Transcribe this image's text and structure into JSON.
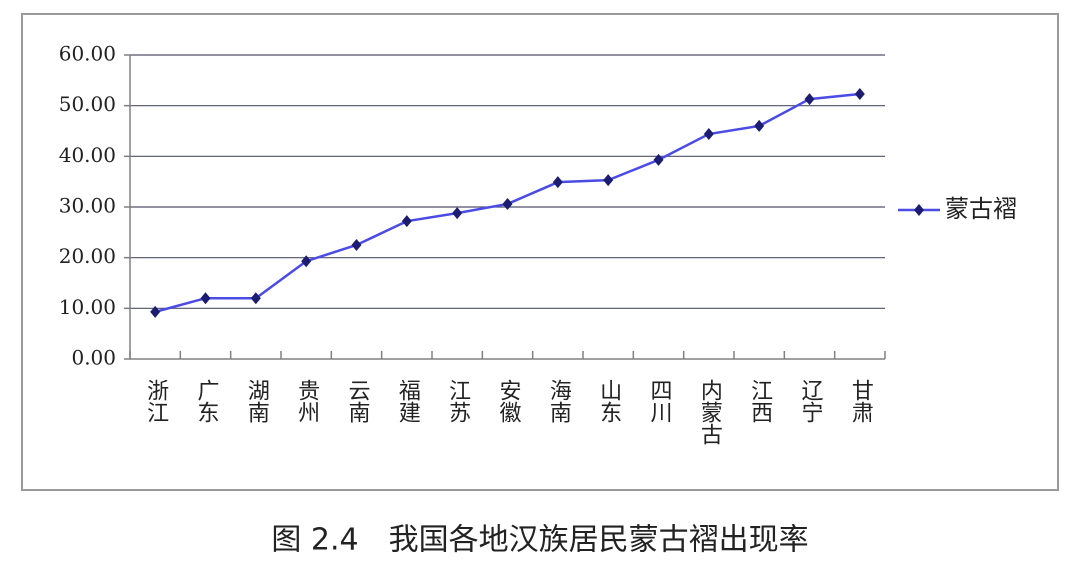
{
  "chart_data": {
    "type": "line",
    "title": "图 2.4　我国各地汉族居民蒙古褶出现率",
    "categories": [
      "浙江",
      "广东",
      "湖南",
      "贵州",
      "云南",
      "福建",
      "江苏",
      "安徽",
      "海南",
      "山东",
      "四川",
      "内蒙古",
      "江西",
      "辽宁",
      "甘肃"
    ],
    "series": [
      {
        "name": "蒙古褶",
        "color": "#4b4be6",
        "marker_color": "#1c1c70",
        "values": [
          9.3,
          12.0,
          12.0,
          19.3,
          22.5,
          27.2,
          28.8,
          30.6,
          34.9,
          35.3,
          39.3,
          44.4,
          46.0,
          51.3,
          52.3
        ]
      }
    ],
    "ylim": [
      0,
      60
    ],
    "yticks": [
      {
        "value": 0,
        "label": "0.00"
      },
      {
        "value": 10,
        "label": "10.00"
      },
      {
        "value": 20,
        "label": "20.00"
      },
      {
        "value": 30,
        "label": "30.00"
      },
      {
        "value": 40,
        "label": "40.00"
      },
      {
        "value": 50,
        "label": "50.00"
      },
      {
        "value": 60,
        "label": "60.00"
      }
    ],
    "grid": true,
    "legend": "right"
  }
}
